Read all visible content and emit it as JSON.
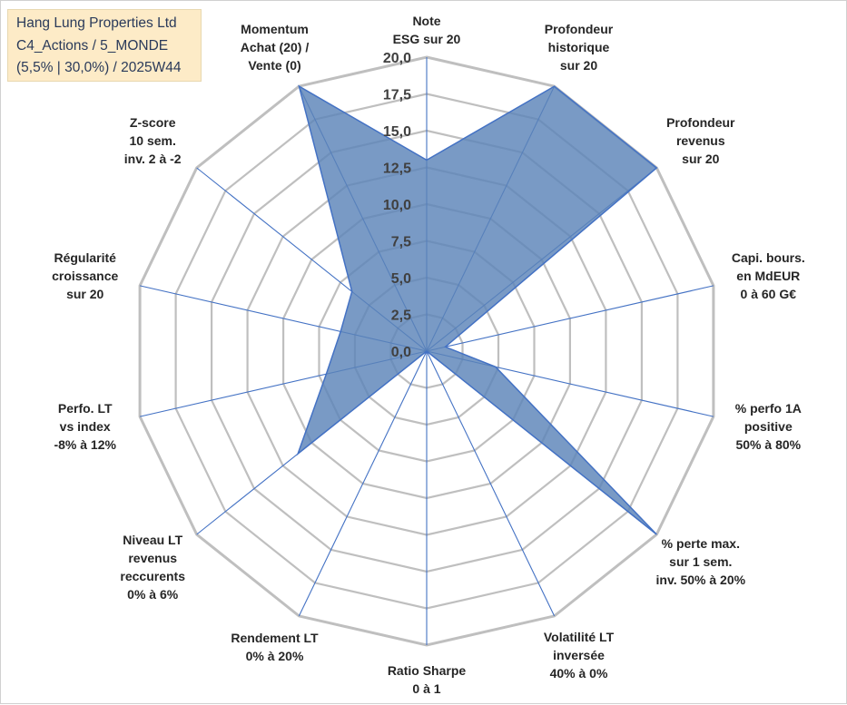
{
  "title_box": {
    "line1": "Hang Lung Properties Ltd",
    "line2": "C4_Actions / 5_MONDE",
    "line3": "(5,5% | 30,0%) / 2025W44",
    "background": "#fdebc7",
    "text_color": "#2a3a5a"
  },
  "chart_data": {
    "type": "radar",
    "title": "Hang Lung Properties Ltd",
    "r_min": 0,
    "r_max": 20,
    "tick_step": 2.5,
    "tick_labels": [
      "0,0",
      "2,5",
      "5,0",
      "7,5",
      "10,0",
      "12,5",
      "15,0",
      "17,5",
      "20,0"
    ],
    "axes": [
      {
        "label": [
          "Note",
          "ESG sur 20"
        ],
        "value": 13.0
      },
      {
        "label": [
          "Profondeur",
          "historique",
          "sur 20"
        ],
        "value": 20.0
      },
      {
        "label": [
          "Profondeur",
          "revenus",
          "sur 20"
        ],
        "value": 20.0
      },
      {
        "label": [
          "Capi. bours.",
          "en MdEUR",
          "0 à 60 G€"
        ],
        "value": 1.3
      },
      {
        "label": [
          "% perfo 1A",
          "positive",
          "50% à 80%"
        ],
        "value": 4.8
      },
      {
        "label": [
          "% perte max.",
          "sur 1 sem.",
          "inv. 50% à 20%"
        ],
        "value": 20.0
      },
      {
        "label": [
          "Volatilité LT",
          "inversée",
          "40% à 0%"
        ],
        "value": 0.0
      },
      {
        "label": [
          "Ratio Sharpe",
          "0 à 1"
        ],
        "value": 0.0
      },
      {
        "label": [
          "Rendement LT",
          "0% à 20%"
        ],
        "value": 0.0
      },
      {
        "label": [
          "Niveau LT",
          "revenus",
          "reccurents",
          "0% à 6%"
        ],
        "value": 11.2
      },
      {
        "label": [
          "Perfo. LT",
          "vs index",
          "-8% à 12%"
        ],
        "value": 7.0
      },
      {
        "label": [
          "Régularité",
          "croissance",
          "sur 20"
        ],
        "value": 6.0
      },
      {
        "label": [
          "Z-score",
          "10 sem.",
          "inv. 2 à -2"
        ],
        "value": 6.5
      },
      {
        "label": [
          "Momentum",
          "Achat (20) /",
          "Vente (0)"
        ],
        "value": 20.0
      }
    ],
    "series": [
      {
        "name": "Hang Lung Properties Ltd",
        "fill": "#5b84b8",
        "stroke": "#4472c4"
      }
    ],
    "grid_color": "#bfbfbf",
    "spoke_color": "#4472c4"
  }
}
